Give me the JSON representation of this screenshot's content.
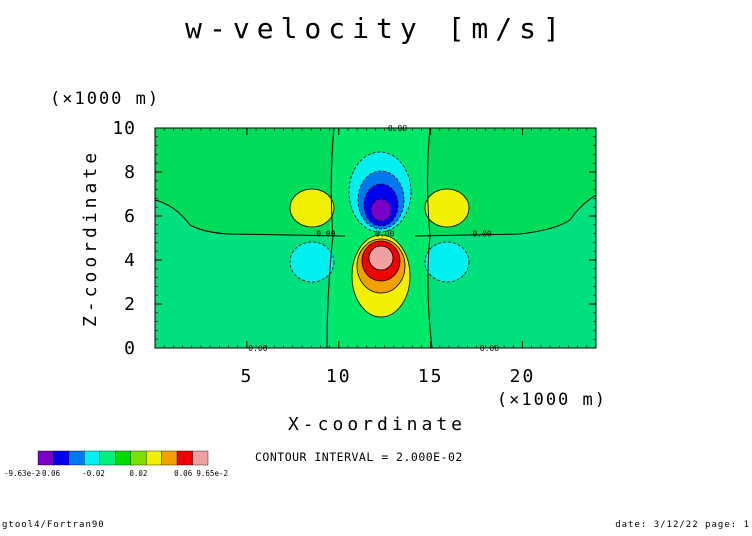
{
  "chart_data": {
    "type": "heatmap",
    "title": "w-velocity [m/s]",
    "xlabel": "X-coordinate",
    "ylabel": "Z-coordinate",
    "x_unit": "(×1000 m)",
    "y_unit": "(×1000 m)",
    "xlim": [
      0,
      24
    ],
    "ylim": [
      0,
      10
    ],
    "x_ticks": [
      5,
      10,
      15,
      20
    ],
    "x_tick_labels": [
      "5",
      "10",
      "15",
      "20"
    ],
    "y_ticks": [
      0,
      2,
      4,
      6,
      8,
      10
    ],
    "y_tick_labels": [
      "0",
      "2",
      "4",
      "6",
      "8",
      "10"
    ],
    "grid": false,
    "contour_interval_text": "CONTOUR INTERVAL = 2.000E-02",
    "contour_labels": [
      {
        "text": "0.00",
        "x": 13.2,
        "z": 10.0
      },
      {
        "text": "0.00",
        "x": 9.3,
        "z": 5.2
      },
      {
        "text": "0.00",
        "x": 12.5,
        "z": 5.2
      },
      {
        "text": "0.00",
        "x": 17.8,
        "z": 5.2
      },
      {
        "text": "0.00",
        "x": 5.6,
        "z": 0.0
      },
      {
        "text": "0.00",
        "x": 18.2,
        "z": 0.0
      }
    ],
    "colorbar": {
      "colors": [
        "#7a00c8",
        "#0000f0",
        "#0078f0",
        "#00f0f0",
        "#00f07a",
        "#00dc00",
        "#7ae100",
        "#f0f000",
        "#f0a000",
        "#f00000",
        "#f0a0a0"
      ],
      "labels": [
        "-9.63e-2",
        "-0.06",
        "-0.02",
        "0.02",
        "0.06",
        "9.65e-2"
      ]
    },
    "features": [
      {
        "kind": "downdraft-core",
        "x": 12.3,
        "z": 6.4,
        "min_value": -0.0963
      },
      {
        "kind": "updraft-core",
        "x": 12.3,
        "z": 4.0,
        "max_value": 0.0965
      },
      {
        "kind": "side-updraft",
        "x": 8.5,
        "z": 6.4
      },
      {
        "kind": "side-updraft",
        "x": 15.8,
        "z": 6.4
      },
      {
        "kind": "side-downdraft",
        "x": 8.5,
        "z": 4.0
      },
      {
        "kind": "side-downdraft",
        "x": 15.8,
        "z": 4.0
      }
    ]
  },
  "footer": {
    "left": "gtool4/Fortran90",
    "right": "date: 3/12/22 page: 1"
  }
}
